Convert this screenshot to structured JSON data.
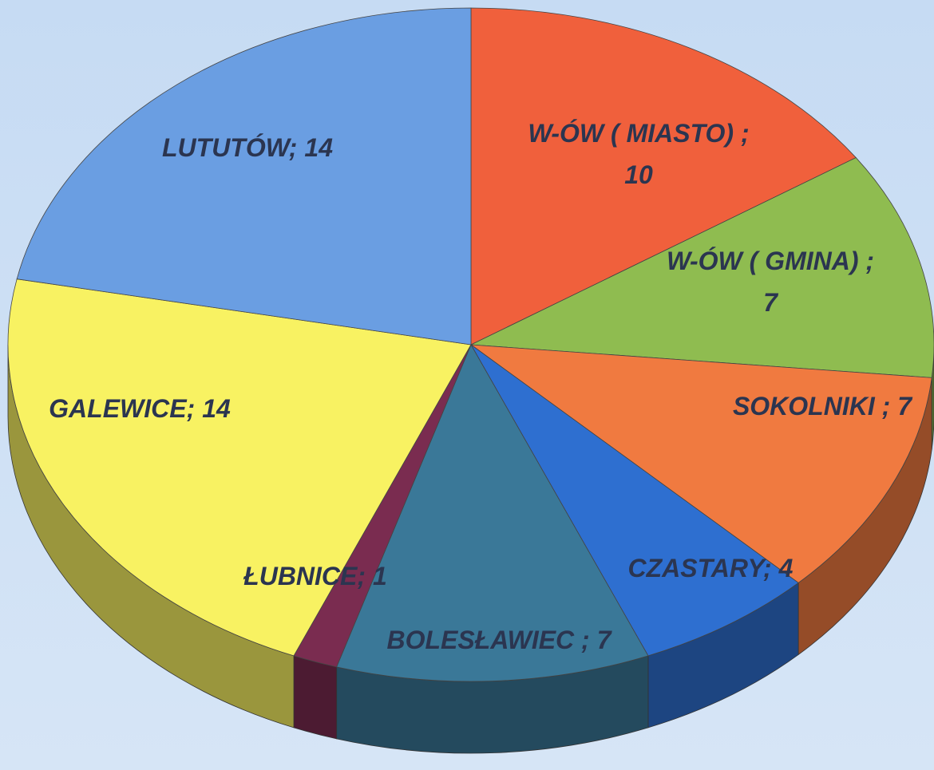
{
  "chart_data": {
    "type": "pie3d",
    "categories": [
      "W-ÓW ( MIASTO) ;",
      "W-ÓW ( GMINA) ;",
      "SOKOLNIKI ;",
      "CZASTARY;",
      "BOLESŁAWIEC ;",
      "ŁUBNICE;",
      "GALEWICE;",
      "LUTUTÓW;"
    ],
    "values": [
      10,
      7,
      7,
      4,
      7,
      1,
      14,
      14
    ],
    "colors": [
      "#f0603c",
      "#8fbc50",
      "#f07a40",
      "#2e6fd0",
      "#3a7898",
      "#7a2c50",
      "#f8f262",
      "#6a9ee2"
    ]
  }
}
